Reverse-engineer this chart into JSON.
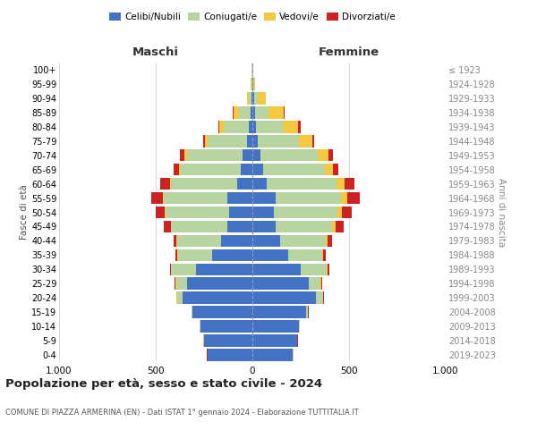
{
  "age_groups": [
    "0-4",
    "5-9",
    "10-14",
    "15-19",
    "20-24",
    "25-29",
    "30-34",
    "35-39",
    "40-44",
    "45-49",
    "50-54",
    "55-59",
    "60-64",
    "65-69",
    "70-74",
    "75-79",
    "80-84",
    "85-89",
    "90-94",
    "95-99",
    "100+"
  ],
  "birth_years": [
    "2019-2023",
    "2014-2018",
    "2009-2013",
    "2004-2008",
    "1999-2003",
    "1994-1998",
    "1989-1993",
    "1984-1988",
    "1979-1983",
    "1974-1978",
    "1969-1973",
    "1964-1968",
    "1959-1963",
    "1954-1958",
    "1949-1953",
    "1944-1948",
    "1939-1943",
    "1934-1938",
    "1929-1933",
    "1924-1928",
    "≤ 1923"
  ],
  "males": {
    "celibi": [
      230,
      250,
      270,
      310,
      360,
      340,
      290,
      210,
      160,
      130,
      120,
      130,
      80,
      60,
      50,
      30,
      20,
      10,
      5,
      2,
      2
    ],
    "coniugati": [
      2,
      2,
      3,
      5,
      30,
      55,
      130,
      175,
      230,
      290,
      330,
      330,
      340,
      310,
      290,
      200,
      130,
      60,
      15,
      3,
      2
    ],
    "vedovi": [
      1,
      1,
      1,
      1,
      2,
      5,
      2,
      2,
      2,
      2,
      2,
      3,
      5,
      8,
      10,
      15,
      20,
      25,
      10,
      2,
      1
    ],
    "divorziati": [
      1,
      1,
      1,
      1,
      2,
      5,
      5,
      10,
      15,
      35,
      50,
      60,
      50,
      30,
      25,
      10,
      8,
      5,
      0,
      0,
      0
    ]
  },
  "females": {
    "nubili": [
      210,
      230,
      240,
      280,
      330,
      290,
      250,
      185,
      145,
      120,
      110,
      120,
      75,
      55,
      40,
      30,
      18,
      12,
      8,
      3,
      2
    ],
    "coniugate": [
      2,
      2,
      4,
      8,
      35,
      60,
      135,
      175,
      235,
      290,
      330,
      340,
      360,
      320,
      300,
      210,
      140,
      70,
      20,
      5,
      2
    ],
    "vedove": [
      1,
      1,
      1,
      1,
      2,
      5,
      5,
      8,
      10,
      20,
      25,
      30,
      40,
      40,
      55,
      70,
      80,
      80,
      40,
      8,
      2
    ],
    "divorziate": [
      1,
      1,
      1,
      1,
      2,
      5,
      8,
      12,
      20,
      40,
      50,
      65,
      55,
      30,
      20,
      8,
      10,
      5,
      0,
      0,
      0
    ]
  },
  "colors": {
    "celibi_nubili": "#4472c4",
    "coniugati_e": "#b8d4a0",
    "vedovi_e": "#f5c842",
    "divorziati_e": "#cc2222"
  },
  "title": "Popolazione per età, sesso e stato civile - 2024",
  "subtitle": "COMUNE DI PIAZZA ARMERINA (EN) - Dati ISTAT 1° gennaio 2024 - Elaborazione TUTTITALIA.IT",
  "xlabel_left": "Maschi",
  "xlabel_right": "Femmine",
  "ylabel_left": "Fasce di età",
  "ylabel_right": "Anni di nascita",
  "xlim": 1000,
  "bg_color": "#ffffff",
  "grid_color": "#cccccc"
}
